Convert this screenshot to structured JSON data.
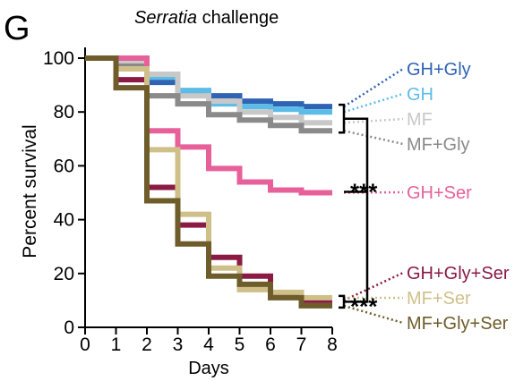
{
  "panel_label": "G",
  "chart_data": {
    "type": "line",
    "step": true,
    "title_italic": "Serratia",
    "title_rest": " challenge",
    "xlabel": "Days",
    "ylabel": "Percent survival",
    "xlim": [
      0,
      8
    ],
    "ylim": [
      0,
      100
    ],
    "xticks": [
      "0",
      "1",
      "2",
      "3",
      "4",
      "5",
      "6",
      "7",
      "8"
    ],
    "yticks": [
      "0",
      "20",
      "40",
      "60",
      "80",
      "100"
    ],
    "series": [
      {
        "name": "GH+Gly",
        "color": "#2f63b4",
        "x": [
          0,
          1,
          2,
          3,
          4,
          5,
          6,
          7,
          8
        ],
        "y": [
          100,
          97,
          91,
          87,
          86,
          84,
          83,
          82,
          82
        ]
      },
      {
        "name": "GH",
        "color": "#5bbce8",
        "x": [
          0,
          1,
          2,
          3,
          4,
          5,
          6,
          7,
          8
        ],
        "y": [
          100,
          98,
          93,
          88,
          83,
          82,
          81,
          80,
          80
        ]
      },
      {
        "name": "MF",
        "color": "#c8c8c8",
        "x": [
          0,
          1,
          2,
          3,
          4,
          5,
          6,
          7,
          8
        ],
        "y": [
          100,
          99,
          94,
          86,
          84,
          80,
          78,
          76,
          76
        ]
      },
      {
        "name": "MF+Gly",
        "color": "#8a8a8a",
        "x": [
          0,
          1,
          2,
          3,
          4,
          5,
          6,
          7,
          8
        ],
        "y": [
          100,
          97,
          86,
          83,
          79,
          77,
          75,
          73,
          73
        ]
      },
      {
        "name": "GH+Ser",
        "color": "#e8609a",
        "x": [
          0,
          1,
          2,
          3,
          4,
          5,
          6,
          7,
          8
        ],
        "y": [
          100,
          100,
          73,
          67,
          59,
          54,
          51,
          50,
          50
        ]
      },
      {
        "name": "GH+Gly+Ser",
        "color": "#8b1a45",
        "x": [
          0,
          1,
          2,
          3,
          4,
          5,
          6,
          7,
          8
        ],
        "y": [
          100,
          92,
          52,
          38,
          26,
          19,
          12,
          10,
          10
        ]
      },
      {
        "name": "MF+Ser",
        "color": "#cfc08a",
        "x": [
          0,
          1,
          2,
          3,
          4,
          5,
          6,
          7,
          8
        ],
        "y": [
          100,
          96,
          66,
          42,
          22,
          14,
          13,
          11,
          11
        ]
      },
      {
        "name": "MF+Gly+Ser",
        "color": "#6e5c2a",
        "x": [
          0,
          1,
          2,
          3,
          4,
          5,
          6,
          7,
          8
        ],
        "y": [
          100,
          89,
          47,
          31,
          19,
          16,
          11,
          8,
          8
        ]
      }
    ],
    "significance": [
      {
        "label": "***",
        "groups": [
          "GH+Gly",
          "GH",
          "MF",
          "MF+Gly"
        ],
        "vs": [
          "GH+Ser"
        ]
      },
      {
        "label": "***",
        "groups": [
          "GH+Gly+Ser",
          "MF+Ser",
          "MF+Gly+Ser"
        ],
        "vs": [
          "GH+Ser"
        ]
      }
    ]
  }
}
